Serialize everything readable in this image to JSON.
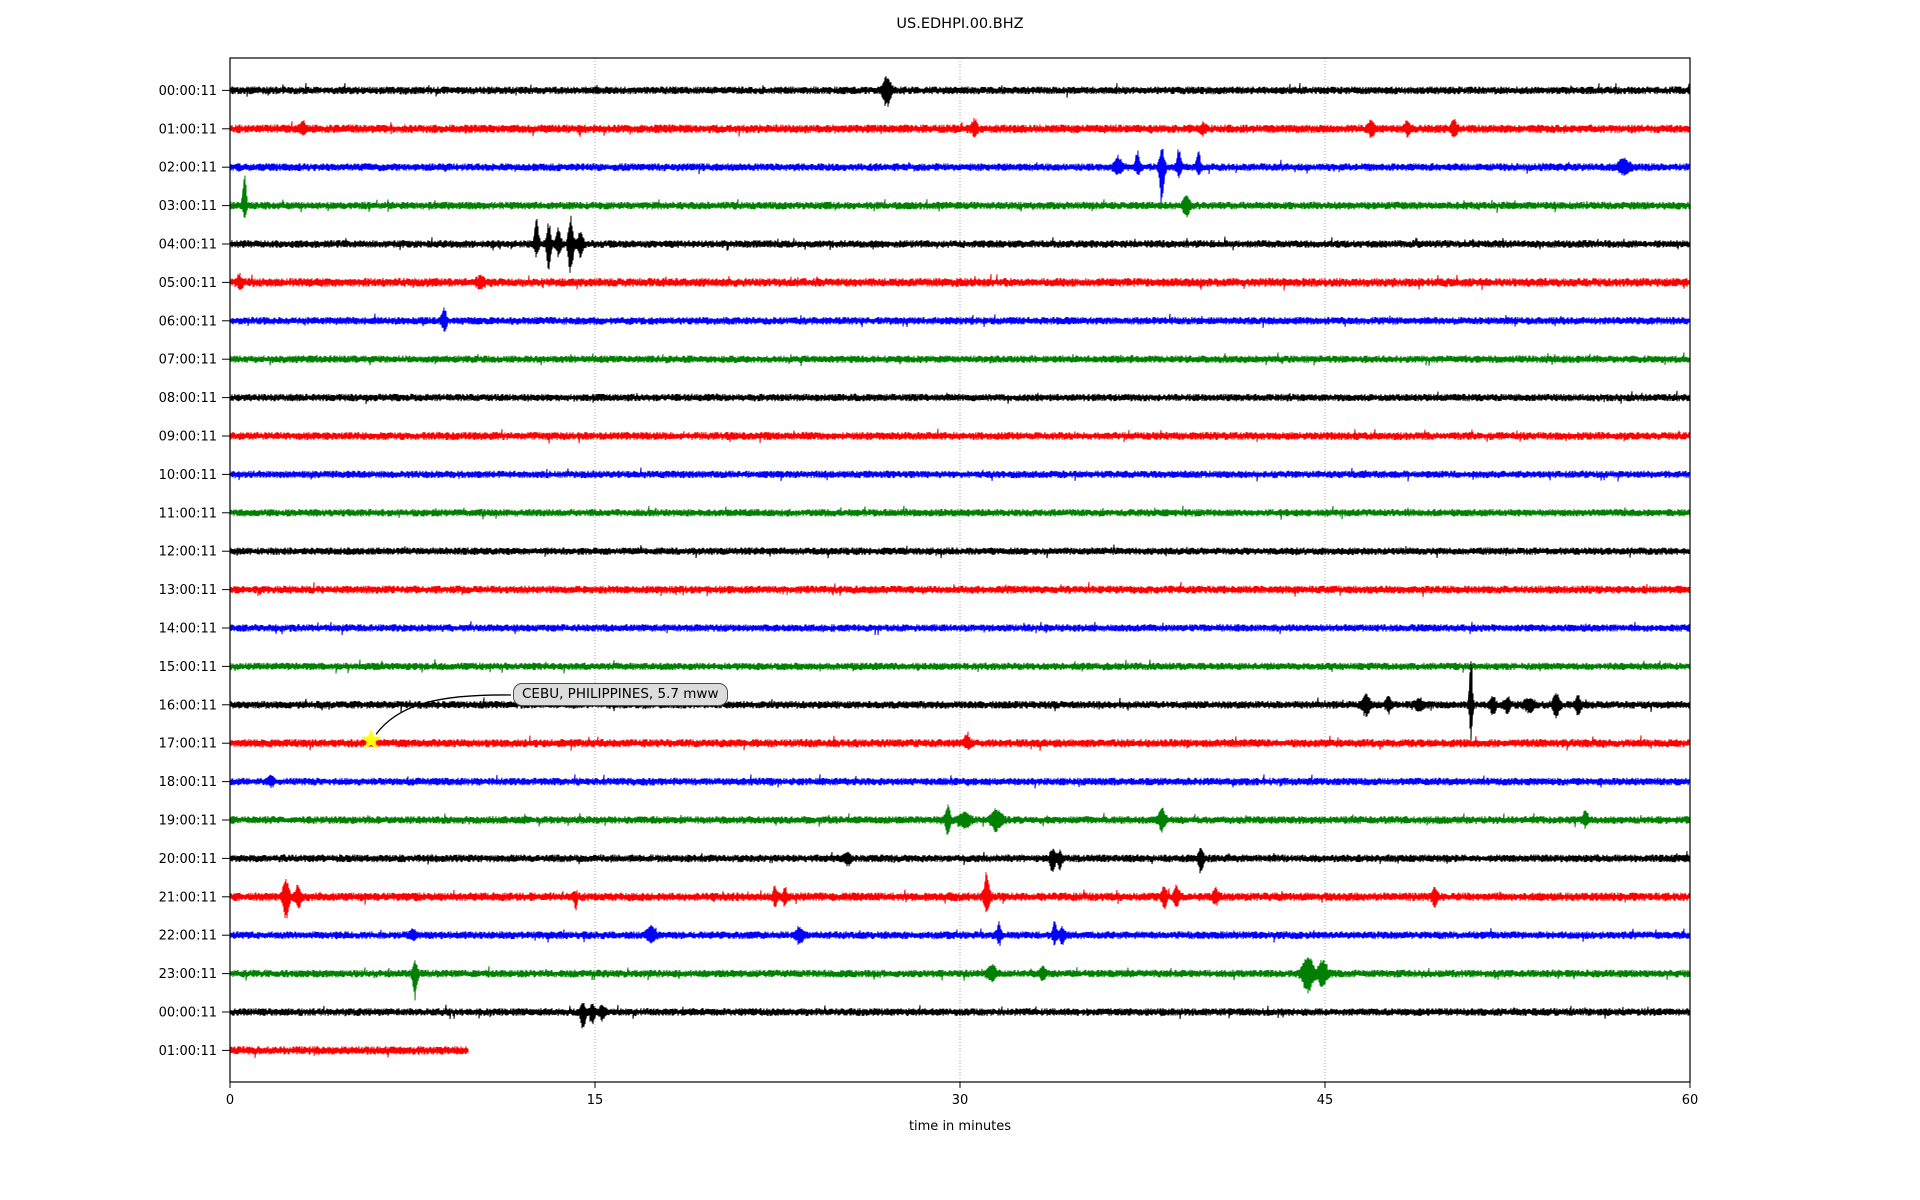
{
  "chart_data": {
    "type": "line",
    "subtype": "seismogram-helicorder-dayplot",
    "title": "US.EDHPI.00.BHZ",
    "xlabel": "time in minutes",
    "xlim": [
      0,
      60
    ],
    "x_ticks": [
      0,
      15,
      30,
      45,
      60
    ],
    "x_tick_labels": [
      "0",
      "15",
      "30",
      "45",
      "60"
    ],
    "grid_minutes": [
      15,
      30,
      45
    ],
    "grid_color": "#aaaaaa",
    "minutes_per_row": 60,
    "color_cycle": [
      "#000000",
      "#ff0000",
      "#0000ff",
      "#008000"
    ],
    "rows": [
      {
        "label": "00:00:11",
        "color": "#000000",
        "noise": 3.0,
        "events": [
          {
            "m": 27.0,
            "u": 12,
            "d": 14,
            "w": 3
          }
        ]
      },
      {
        "label": "01:00:11",
        "color": "#ff0000",
        "noise": 3.3,
        "events": [
          {
            "m": 3.0,
            "u": 5,
            "d": 5,
            "w": 2
          },
          {
            "m": 30.6,
            "u": 7,
            "d": 6,
            "w": 2
          },
          {
            "m": 40.0,
            "u": 4,
            "d": 4,
            "w": 2
          },
          {
            "m": 46.9,
            "u": 6,
            "d": 7,
            "w": 2
          },
          {
            "m": 48.4,
            "u": 6,
            "d": 5,
            "w": 2
          },
          {
            "m": 50.3,
            "u": 7,
            "d": 7,
            "w": 2
          }
        ]
      },
      {
        "label": "02:00:11",
        "color": "#0000ff",
        "noise": 3.0,
        "events": [
          {
            "m": 36.5,
            "u": 8,
            "d": 5,
            "w": 3
          },
          {
            "m": 37.3,
            "u": 14,
            "d": 6,
            "w": 1.6
          },
          {
            "m": 38.3,
            "u": 20,
            "d": 35,
            "w": 1.8
          },
          {
            "m": 39.0,
            "u": 16,
            "d": 8,
            "w": 1.6
          },
          {
            "m": 39.8,
            "u": 13,
            "d": 6,
            "w": 1.6
          },
          {
            "m": 57.3,
            "u": 7,
            "d": 6,
            "w": 4
          }
        ]
      },
      {
        "label": "03:00:11",
        "color": "#008000",
        "noise": 3.0,
        "events": [
          {
            "m": 0.6,
            "u": 32,
            "d": 12,
            "w": 1.4
          },
          {
            "m": 39.3,
            "u": 8,
            "d": 9,
            "w": 2.5
          }
        ]
      },
      {
        "label": "04:00:11",
        "color": "#000000",
        "noise": 3.0,
        "events": [
          {
            "m": 12.6,
            "u": 22,
            "d": 10,
            "w": 1.6
          },
          {
            "m": 13.1,
            "u": 18,
            "d": 25,
            "w": 1.6
          },
          {
            "m": 13.5,
            "u": 14,
            "d": 10,
            "w": 1.8
          },
          {
            "m": 14.0,
            "u": 28,
            "d": 30,
            "w": 1.8
          },
          {
            "m": 14.4,
            "u": 10,
            "d": 12,
            "w": 2
          }
        ]
      },
      {
        "label": "05:00:11",
        "color": "#ff0000",
        "noise": 3.4,
        "events": [
          {
            "m": 0.4,
            "u": 5,
            "d": 5,
            "w": 2
          },
          {
            "m": 10.3,
            "u": 4,
            "d": 4,
            "w": 3
          }
        ]
      },
      {
        "label": "06:00:11",
        "color": "#0000ff",
        "noise": 3.0,
        "events": [
          {
            "m": 8.8,
            "u": 11,
            "d": 9,
            "w": 1.8
          }
        ]
      },
      {
        "label": "07:00:11",
        "color": "#008000",
        "noise": 2.9,
        "events": []
      },
      {
        "label": "08:00:11",
        "color": "#000000",
        "noise": 2.9,
        "events": []
      },
      {
        "label": "09:00:11",
        "color": "#ff0000",
        "noise": 3.1,
        "events": []
      },
      {
        "label": "10:00:11",
        "color": "#0000ff",
        "noise": 2.9,
        "events": []
      },
      {
        "label": "11:00:11",
        "color": "#008000",
        "noise": 2.9,
        "events": []
      },
      {
        "label": "12:00:11",
        "color": "#000000",
        "noise": 2.9,
        "events": []
      },
      {
        "label": "13:00:11",
        "color": "#ff0000",
        "noise": 3.1,
        "events": []
      },
      {
        "label": "14:00:11",
        "color": "#0000ff",
        "noise": 2.9,
        "events": []
      },
      {
        "label": "15:00:11",
        "color": "#008000",
        "noise": 2.9,
        "events": []
      },
      {
        "label": "16:00:11",
        "color": "#000000",
        "noise": 3.0,
        "events": [
          {
            "m": 46.7,
            "u": 9,
            "d": 11,
            "w": 2.5
          },
          {
            "m": 47.6,
            "u": 8,
            "d": 6,
            "w": 2
          },
          {
            "m": 48.9,
            "u": 4,
            "d": 5,
            "w": 3
          },
          {
            "m": 51.0,
            "u": 52,
            "d": 38,
            "w": 1.1
          },
          {
            "m": 51.9,
            "u": 7,
            "d": 9,
            "w": 2
          },
          {
            "m": 52.5,
            "u": 6,
            "d": 7,
            "w": 2
          },
          {
            "m": 53.4,
            "u": 4,
            "d": 5,
            "w": 4
          },
          {
            "m": 54.5,
            "u": 10,
            "d": 12,
            "w": 2.2
          },
          {
            "m": 55.4,
            "u": 8,
            "d": 9,
            "w": 2
          }
        ]
      },
      {
        "label": "17:00:11",
        "color": "#ff0000",
        "noise": 3.2,
        "events": [
          {
            "m": 30.3,
            "u": 7,
            "d": 4,
            "w": 2
          }
        ]
      },
      {
        "label": "18:00:11",
        "color": "#0000ff",
        "noise": 3.0,
        "events": [
          {
            "m": 1.7,
            "u": 5,
            "d": 3,
            "w": 2
          }
        ]
      },
      {
        "label": "19:00:11",
        "color": "#008000",
        "noise": 3.0,
        "events": [
          {
            "m": 29.5,
            "u": 13,
            "d": 13,
            "w": 1.8
          },
          {
            "m": 30.2,
            "u": 6,
            "d": 6,
            "w": 4
          },
          {
            "m": 31.5,
            "u": 9,
            "d": 9,
            "w": 4
          },
          {
            "m": 38.3,
            "u": 10,
            "d": 9,
            "w": 2.5
          },
          {
            "m": 55.7,
            "u": 7,
            "d": 5,
            "w": 2
          }
        ]
      },
      {
        "label": "20:00:11",
        "color": "#000000",
        "noise": 3.0,
        "events": [
          {
            "m": 25.4,
            "u": 4,
            "d": 5,
            "w": 2
          },
          {
            "m": 33.8,
            "u": 7,
            "d": 16,
            "w": 1.8
          },
          {
            "m": 34.1,
            "u": 5,
            "d": 8,
            "w": 2
          },
          {
            "m": 39.9,
            "u": 9,
            "d": 13,
            "w": 2
          }
        ]
      },
      {
        "label": "21:00:11",
        "color": "#ff0000",
        "noise": 3.3,
        "events": [
          {
            "m": 2.3,
            "u": 16,
            "d": 20,
            "w": 2.2
          },
          {
            "m": 2.8,
            "u": 8,
            "d": 10,
            "w": 2
          },
          {
            "m": 14.2,
            "u": 4,
            "d": 10,
            "w": 1.4
          },
          {
            "m": 22.4,
            "u": 9,
            "d": 9,
            "w": 1.4
          },
          {
            "m": 22.8,
            "u": 8,
            "d": 8,
            "w": 1.4
          },
          {
            "m": 31.1,
            "u": 18,
            "d": 14,
            "w": 2.2
          },
          {
            "m": 38.4,
            "u": 8,
            "d": 9,
            "w": 1.8
          },
          {
            "m": 38.9,
            "u": 9,
            "d": 8,
            "w": 1.8
          },
          {
            "m": 40.5,
            "u": 6,
            "d": 6,
            "w": 2
          },
          {
            "m": 49.5,
            "u": 8,
            "d": 8,
            "w": 1.8
          }
        ]
      },
      {
        "label": "22:00:11",
        "color": "#0000ff",
        "noise": 3.0,
        "events": [
          {
            "m": 7.5,
            "u": 5,
            "d": 4,
            "w": 2
          },
          {
            "m": 17.3,
            "u": 7,
            "d": 6,
            "w": 3
          },
          {
            "m": 23.4,
            "u": 7,
            "d": 6,
            "w": 3
          },
          {
            "m": 31.6,
            "u": 12,
            "d": 7,
            "w": 1.4
          },
          {
            "m": 33.9,
            "u": 13,
            "d": 8,
            "w": 1.4
          },
          {
            "m": 34.2,
            "u": 6,
            "d": 8,
            "w": 2
          }
        ]
      },
      {
        "label": "23:00:11",
        "color": "#008000",
        "noise": 3.0,
        "events": [
          {
            "m": 7.6,
            "u": 14,
            "d": 24,
            "w": 1.6
          },
          {
            "m": 31.3,
            "u": 7,
            "d": 6,
            "w": 3
          },
          {
            "m": 33.4,
            "u": 6,
            "d": 5,
            "w": 2
          },
          {
            "m": 44.3,
            "u": 16,
            "d": 17,
            "w": 4
          },
          {
            "m": 44.9,
            "u": 12,
            "d": 12,
            "w": 3
          }
        ]
      },
      {
        "label": "00:00:11",
        "color": "#000000",
        "noise": 3.0,
        "events": [
          {
            "m": 14.5,
            "u": 8,
            "d": 16,
            "w": 1.8
          },
          {
            "m": 14.9,
            "u": 7,
            "d": 10,
            "w": 1.8
          },
          {
            "m": 15.3,
            "u": 5,
            "d": 6,
            "w": 2
          }
        ]
      },
      {
        "label": "01:00:11",
        "color": "#ff0000",
        "noise": 3.3,
        "end_minute": 9.8,
        "events": []
      }
    ],
    "annotation": {
      "text": "CEBU, PHILIPPINES, 5.7 mww",
      "row_index": 17,
      "minute": 5.8,
      "marker": "star",
      "marker_color": "#ffff00",
      "box_fill": "#dcdcdc",
      "box_border": "#4d4d4d"
    }
  }
}
